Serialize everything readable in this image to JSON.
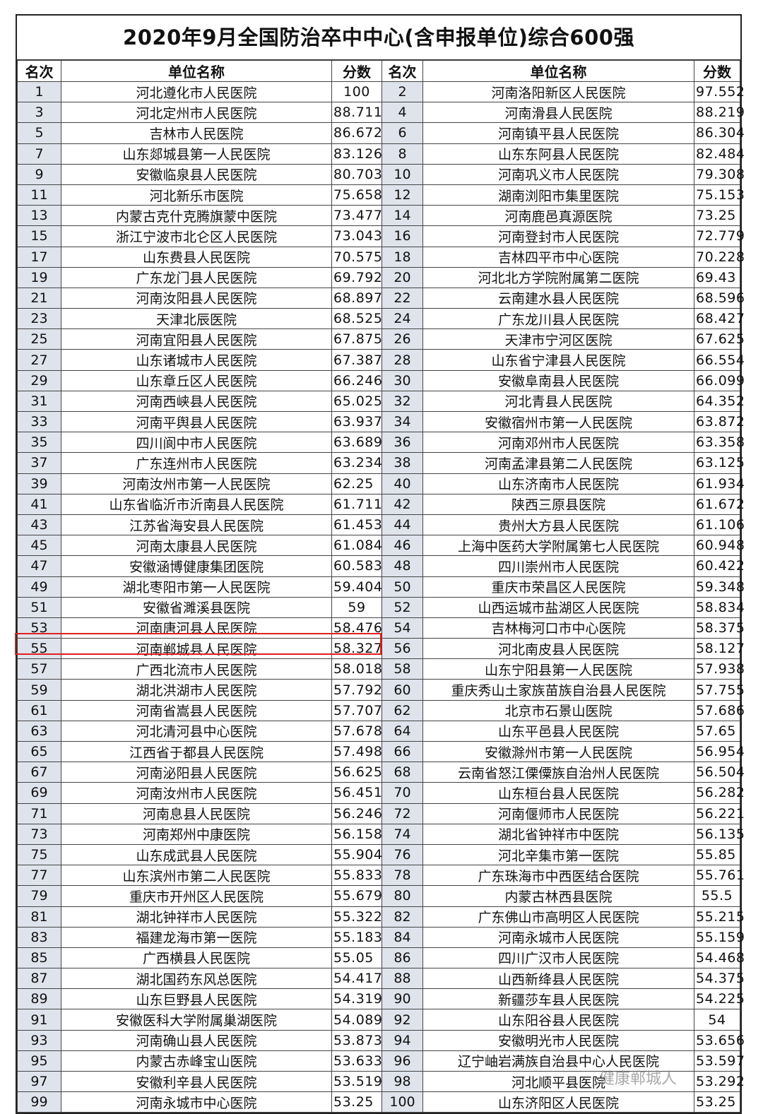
{
  "title": "2020年9月全国防治卒中中心(含申报单位)综合600强",
  "headers": [
    "名次",
    "单位名称",
    "分数",
    "名次",
    "单位名称",
    "分数"
  ],
  "highlight_color": "#e02020",
  "highlighted_rank": "55",
  "watermark": "健康郸城人",
  "rows": [
    [
      "1",
      "河北遵化市人民医院",
      "100",
      "2",
      "河南洛阳新区人民医院",
      "97.552"
    ],
    [
      "3",
      "河北定州市人民医院",
      "88.711",
      "4",
      "河南滑县人民医院",
      "88.219"
    ],
    [
      "5",
      "吉林市人民医院",
      "86.672",
      "6",
      "河南镇平县人民医院",
      "86.304"
    ],
    [
      "7",
      "山东郯城县第一人民医院",
      "83.126",
      "8",
      "山东东阿县人民医院",
      "82.484"
    ],
    [
      "9",
      "安徽临泉县人民医院",
      "80.703",
      "10",
      "河南巩义市人民医院",
      "79.308"
    ],
    [
      "11",
      "河北新乐市医院",
      "75.658",
      "12",
      "湖南浏阳市集里医院",
      "75.153"
    ],
    [
      "13",
      "内蒙古克什克腾旗蒙中医院",
      "73.477",
      "14",
      "河南鹿邑真源医院",
      "73.25"
    ],
    [
      "15",
      "浙江宁波市北仑区人民医院",
      "73.043",
      "16",
      "河南登封市人民医院",
      "72.779"
    ],
    [
      "17",
      "山东费县人民医院",
      "70.575",
      "18",
      "吉林四平市中心医院",
      "70.228"
    ],
    [
      "19",
      "广东龙门县人民医院",
      "69.792",
      "20",
      "河北北方学院附属第二医院",
      "69.43"
    ],
    [
      "21",
      "河南汝阳县人民医院",
      "68.897",
      "22",
      "云南建水县人民医院",
      "68.596"
    ],
    [
      "23",
      "天津北辰医院",
      "68.525",
      "24",
      "广东龙川县人民医院",
      "68.427"
    ],
    [
      "25",
      "河南宜阳县人民医院",
      "67.875",
      "26",
      "天津市宁河区医院",
      "67.625"
    ],
    [
      "27",
      "山东诸城市人民医院",
      "67.387",
      "28",
      "山东省宁津县人民医院",
      "66.554"
    ],
    [
      "29",
      "山东章丘区人民医院",
      "66.246",
      "30",
      "安徽阜南县人民医院",
      "66.099"
    ],
    [
      "31",
      "河南西峡县人民医院",
      "65.025",
      "32",
      "河北青县人民医院",
      "64.352"
    ],
    [
      "33",
      "河南平舆县人民医院",
      "63.937",
      "34",
      "安徽宿州市第一人民医院",
      "63.872"
    ],
    [
      "35",
      "四川阆中市人民医院",
      "63.689",
      "36",
      "河南邓州市人民医院",
      "63.358"
    ],
    [
      "37",
      "广东连州市人民医院",
      "63.234",
      "38",
      "河南孟津县第二人民医院",
      "63.125"
    ],
    [
      "39",
      "河南汝州市第一人民医院",
      "62.25",
      "40",
      "山东济南市人民医院",
      "61.934"
    ],
    [
      "41",
      "山东省临沂市沂南县人民医院",
      "61.711",
      "42",
      "陕西三原县医院",
      "61.672"
    ],
    [
      "43",
      "江苏省海安县人民医院",
      "61.453",
      "44",
      "贵州大方县人民医院",
      "61.106"
    ],
    [
      "45",
      "河南太康县人民医院",
      "61.084",
      "46",
      "上海中医药大学附属第七人民医院",
      "60.948"
    ],
    [
      "47",
      "安徽涵博健康集团医院",
      "60.583",
      "48",
      "四川崇州市人民医院",
      "60.422"
    ],
    [
      "49",
      "湖北枣阳市第一人民医院",
      "59.404",
      "50",
      "重庆市荣昌区人民医院",
      "59.348"
    ],
    [
      "51",
      "安徽省濉溪县医院",
      "59",
      "52",
      "山西运城市盐湖区人民医院",
      "58.834"
    ],
    [
      "53",
      "河南唐河县人民医院",
      "58.476",
      "54",
      "吉林梅河口市中心医院",
      "58.375"
    ],
    [
      "55",
      "河南郸城县人民医院",
      "58.327",
      "56",
      "河北南皮县人民医院",
      "58.127"
    ],
    [
      "57",
      "广西北流市人民医院",
      "58.018",
      "58",
      "山东宁阳县第一人民医院",
      "57.938"
    ],
    [
      "59",
      "湖北洪湖市人民医院",
      "57.792",
      "60",
      "重庆秀山土家族苗族自治县人民医院",
      "57.755"
    ],
    [
      "61",
      "河南省嵩县人民医院",
      "57.707",
      "62",
      "北京市石景山医院",
      "57.686"
    ],
    [
      "63",
      "河北清河县中心医院",
      "57.678",
      "64",
      "山东平邑县人民医院",
      "57.65"
    ],
    [
      "65",
      "江西省于都县人民医院",
      "57.498",
      "66",
      "安徽滁州市第一人民医院",
      "56.954"
    ],
    [
      "67",
      "河南泌阳县人民医院",
      "56.625",
      "68",
      "云南省怒江傈僳族自治州人民医院",
      "56.504"
    ],
    [
      "69",
      "河南汝州市人民医院",
      "56.451",
      "70",
      "山东桓台县人民医院",
      "56.282"
    ],
    [
      "71",
      "河南息县人民医院",
      "56.246",
      "72",
      "河南偃师市人民医院",
      "56.221"
    ],
    [
      "73",
      "河南郑州中康医院",
      "56.158",
      "74",
      "湖北省钟祥市中医院",
      "56.135"
    ],
    [
      "75",
      "山东成武县人民医院",
      "55.904",
      "76",
      "河北辛集市第一医院",
      "55.85"
    ],
    [
      "77",
      "山东滨州市第二人民医院",
      "55.833",
      "78",
      "广东珠海市中西医结合医院",
      "55.761"
    ],
    [
      "79",
      "重庆市开州区人民医院",
      "55.679",
      "80",
      "内蒙古林西县医院",
      "55.5"
    ],
    [
      "81",
      "湖北钟祥市人民医院",
      "55.322",
      "82",
      "广东佛山市高明区人民医院",
      "55.215"
    ],
    [
      "83",
      "福建龙海市第一医院",
      "55.183",
      "84",
      "河南永城市人民医院",
      "55.159"
    ],
    [
      "85",
      "广西横县人民医院",
      "55.05",
      "86",
      "四川广汉市人民医院",
      "54.468"
    ],
    [
      "87",
      "湖北国药东风总医院",
      "54.417",
      "88",
      "山西新绛县人民医院",
      "54.375"
    ],
    [
      "89",
      "山东巨野县人民医院",
      "54.319",
      "90",
      "新疆莎车县人民医院",
      "54.225"
    ],
    [
      "91",
      "安徽医科大学附属巢湖医院",
      "54.089",
      "92",
      "山东阳谷县人民医院",
      "54"
    ],
    [
      "93",
      "河南确山县人民医院",
      "53.873",
      "94",
      "安徽明光市人民医院",
      "53.656"
    ],
    [
      "95",
      "内蒙古赤峰宝山医院",
      "53.633",
      "96",
      "辽宁岫岩满族自治县中心人民医院",
      "53.597"
    ],
    [
      "97",
      "安徽利辛县人民医院",
      "53.519",
      "98",
      "河北顺平县医院",
      "53.292"
    ],
    [
      "99",
      "河南永城市中心医院",
      "53.25",
      "100",
      "山东济阳区人民医院",
      "53.25"
    ]
  ]
}
